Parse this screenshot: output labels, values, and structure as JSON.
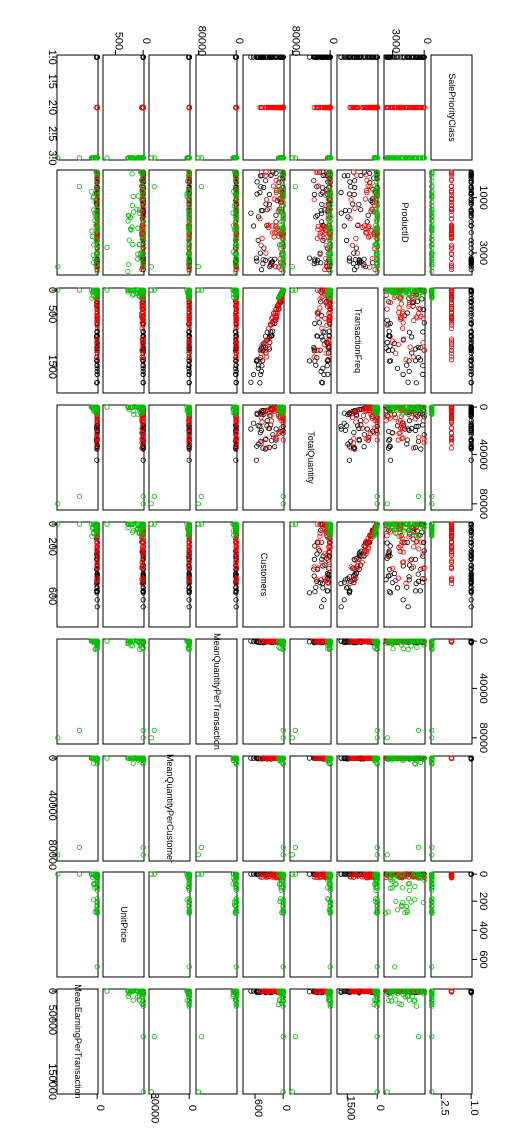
{
  "chart_data": {
    "type": "scatter",
    "title": "",
    "description_orientation": "rotated 90 degrees clockwise",
    "variables": [
      "SalePriorityClass",
      "ProductID",
      "TransactionFreq",
      "TotalQuantity",
      "Customers",
      "MeanQuantityPerTransaction",
      "MeanQuantityPerCustomer",
      "UnitPrice",
      "MeanEarningPerTransaction"
    ],
    "ranges": [
      [
        1,
        3
      ],
      [
        0,
        3800
      ],
      [
        0,
        2000
      ],
      [
        0,
        85000
      ],
      [
        0,
        850
      ],
      [
        0,
        85000
      ],
      [
        0,
        85000
      ],
      [
        0,
        720
      ],
      [
        0,
        170000
      ]
    ],
    "tick_labels": {
      "SalePriorityClass": [
        "1.0",
        "1.5",
        "2.0",
        "2.5",
        "3.0"
      ],
      "SalePriorityClass_bottom": [
        "1.0",
        "2.5"
      ],
      "ProductID": [
        "1000",
        "3000"
      ],
      "ProductID_top": [
        "0",
        "3000"
      ],
      "TransactionFreq": [
        "0",
        "500",
        "1500"
      ],
      "TransactionFreq_top": [
        "0",
        "500"
      ],
      "TransactionFreq_bottom": [
        "0",
        "1500"
      ],
      "TotalQuantity": [
        "0",
        "40000",
        "80000"
      ],
      "TotalQuantity_top": [
        "0",
        "80000"
      ],
      "Customers": [
        "0",
        "200",
        "600"
      ],
      "Customers_bottom": [
        "0",
        "600"
      ],
      "MeanQuantityPerTransaction": [
        "0",
        "40000",
        "80000"
      ],
      "MeanQuantityPerTransaction_top": [
        "0",
        "80000"
      ],
      "MeanQuantityPerCustomer": [
        "0",
        "40000",
        "80000"
      ],
      "MeanQuantityPerCustomer_bottom": [
        "0",
        "80000"
      ],
      "UnitPrice": [
        "0",
        "200",
        "400",
        "600"
      ],
      "MeanEarningPerTransaction": [
        "0",
        "50000",
        "150000"
      ],
      "MeanEarningPerTransaction_bottom": [
        "0"
      ]
    },
    "series": [
      {
        "name": "",
        "color": "#000000"
      },
      {
        "name": "",
        "color": "#ff0000"
      },
      {
        "name": "",
        "color": "#00c000"
      }
    ],
    "grid": false,
    "legend": "none"
  }
}
